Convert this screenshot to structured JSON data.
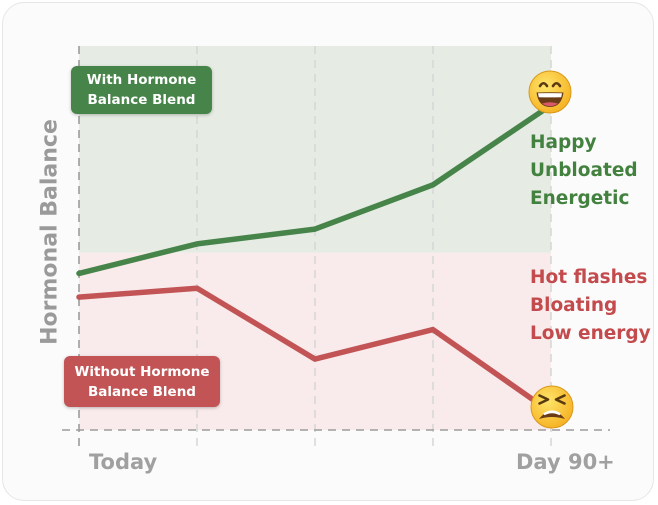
{
  "chart_data": {
    "type": "line",
    "xlabel": "",
    "ylabel": "Hormonal Balance",
    "x_tick_labels": [
      "Today",
      "Day 90+"
    ],
    "series": [
      {
        "name": "With Hormone Balance Blend",
        "color": "#47844a",
        "values": [
          5.3,
          6.3,
          6.8,
          8.3,
          11.0
        ]
      },
      {
        "name": "Without Hormone Balance Blend",
        "color": "#c25455",
        "values": [
          4.5,
          4.8,
          2.4,
          3.4,
          0.6
        ]
      }
    ],
    "ylim": [
      0,
      13
    ],
    "zones": [
      {
        "name": "with-blend-zone",
        "from": 6.0,
        "to": 13.0,
        "color": "#e6ece4"
      },
      {
        "name": "without-blend-zone",
        "from": 0.0,
        "to": 6.0,
        "color": "#f9ebeb"
      }
    ],
    "grid": true,
    "legend": "inline-badges"
  },
  "labels": {
    "ylabel": "Hormonal Balance",
    "x_start": "Today",
    "x_end": "Day 90+",
    "with_blend": "With Hormone Balance Blend",
    "without_blend": "Without Hormone Balance Blend"
  },
  "outcomes": {
    "with_blend": [
      "Happy",
      "Unbloated",
      "Energetic"
    ],
    "without_blend": [
      "Hot flashes",
      "Bloating",
      "Low energy"
    ]
  },
  "icons": {
    "top": "grinning-face-icon",
    "bottom": "tired-face-icon"
  },
  "colors": {
    "green": "#47844a",
    "red": "#c25455",
    "green_zone": "#e6ece4",
    "red_zone": "#f9ebeb",
    "axis_gray": "#a0a0a0"
  }
}
